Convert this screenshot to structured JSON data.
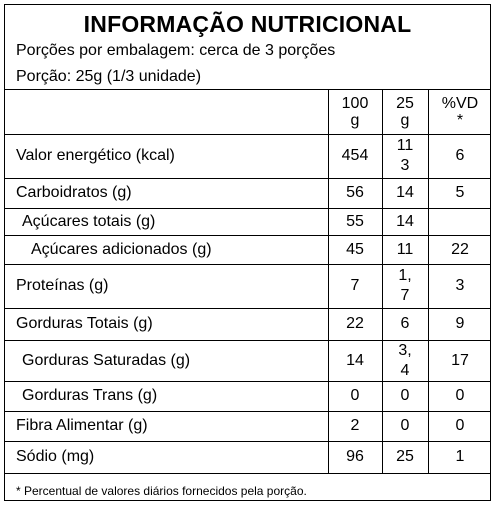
{
  "title": "INFORMAÇÃO NUTRICIONAL",
  "servings_per_package": "Porções por embalagem: cerca de 3 porções",
  "portion": "Porção: 25g (1/3 unidade)",
  "columns": {
    "per100_line1": "100",
    "per100_line2": "g",
    "per25_line1": "25",
    "per25_line2": "g",
    "vd_line1": "%VD",
    "vd_line2": "*"
  },
  "rows": [
    {
      "name": "Valor energético (kcal)",
      "per100": "454",
      "per25_a": "11",
      "per25_b": "3",
      "vd": "6"
    },
    {
      "name": "Carboidratos (g)",
      "per100": "56",
      "per25": "14",
      "vd": "5"
    },
    {
      "name": "Açúcares totais (g)",
      "per100": "55",
      "per25": "14",
      "vd": ""
    },
    {
      "name": "Açúcares adicionados (g)",
      "per100": "45",
      "per25": "11",
      "vd": "22"
    },
    {
      "name": "Proteínas (g)",
      "per100": "7",
      "per25_a": "1,",
      "per25_b": "7",
      "vd": "3"
    },
    {
      "name": "Gorduras Totais (g)",
      "per100": "22",
      "per25": "6",
      "vd": "9"
    },
    {
      "name": "Gorduras Saturadas (g)",
      "per100": "14",
      "per25_a": "3,",
      "per25_b": "4",
      "vd": "17"
    },
    {
      "name": "Gorduras Trans (g)",
      "per100": "0",
      "per25": "0",
      "vd": "0"
    },
    {
      "name": "Fibra Alimentar (g)",
      "per100": "2",
      "per25": "0",
      "vd": "0"
    },
    {
      "name": "Sódio (mg)",
      "per100": "96",
      "per25": "25",
      "vd": "1"
    }
  ],
  "footnote": "* Percentual de valores diários fornecidos pela porção."
}
